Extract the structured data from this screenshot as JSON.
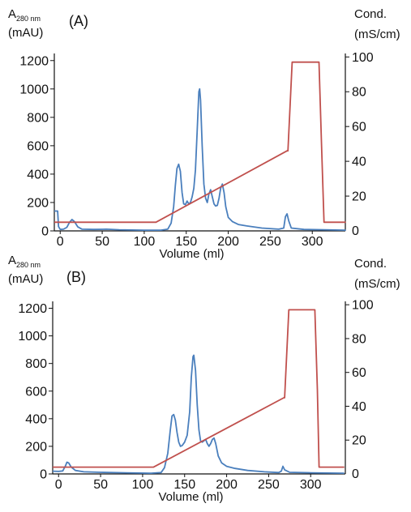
{
  "chart_data": [
    {
      "panel": "(A)",
      "type": "line",
      "xlabel": "Volume (ml)",
      "ylabel_main": "A",
      "ylabel_sub": "280 nm",
      "ylabel_unit": "(mAU)",
      "y2label": "Cond.",
      "y2label_unit": "(mS/cm)",
      "xlim": [
        -7,
        340
      ],
      "ylim": [
        0,
        1300
      ],
      "y2lim": [
        0,
        102
      ],
      "xticks": [
        0,
        50,
        100,
        150,
        200,
        250,
        300
      ],
      "yticks": [
        0,
        200,
        400,
        600,
        800,
        1000,
        1200
      ],
      "y2ticks": [
        20,
        40,
        60,
        80,
        100
      ],
      "series": [
        {
          "axis": "left",
          "color": "#4a7fbd",
          "points": [
            [
              -7,
              140
            ],
            [
              -3,
              140
            ],
            [
              -2,
              30
            ],
            [
              0,
              10
            ],
            [
              4,
              12
            ],
            [
              8,
              25
            ],
            [
              11,
              60
            ],
            [
              14,
              80
            ],
            [
              17,
              65
            ],
            [
              21,
              28
            ],
            [
              26,
              12
            ],
            [
              40,
              10
            ],
            [
              55,
              12
            ],
            [
              70,
              8
            ],
            [
              100,
              5
            ],
            [
              120,
              5
            ],
            [
              128,
              12
            ],
            [
              132,
              55
            ],
            [
              135,
              170
            ],
            [
              137,
              320
            ],
            [
              139,
              440
            ],
            [
              141,
              470
            ],
            [
              143,
              420
            ],
            [
              145,
              270
            ],
            [
              147,
              190
            ],
            [
              149,
              185
            ],
            [
              151,
              210
            ],
            [
              153,
              190
            ],
            [
              155,
              200
            ],
            [
              157,
              240
            ],
            [
              159,
              300
            ],
            [
              161,
              430
            ],
            [
              163,
              700
            ],
            [
              165,
              980
            ],
            [
              166,
              1000
            ],
            [
              167,
              920
            ],
            [
              169,
              600
            ],
            [
              171,
              330
            ],
            [
              173,
              230
            ],
            [
              175,
              200
            ],
            [
              177,
              260
            ],
            [
              179,
              290
            ],
            [
              181,
              240
            ],
            [
              183,
              190
            ],
            [
              185,
              175
            ],
            [
              187,
              180
            ],
            [
              189,
              230
            ],
            [
              191,
              300
            ],
            [
              193,
              330
            ],
            [
              195,
              270
            ],
            [
              197,
              170
            ],
            [
              200,
              95
            ],
            [
              205,
              65
            ],
            [
              212,
              45
            ],
            [
              222,
              35
            ],
            [
              240,
              20
            ],
            [
              260,
              12
            ],
            [
              266,
              20
            ],
            [
              268,
              100
            ],
            [
              270,
              120
            ],
            [
              272,
              70
            ],
            [
              275,
              20
            ],
            [
              290,
              10
            ],
            [
              340,
              5
            ]
          ]
        },
        {
          "axis": "right",
          "color": "#c0504d",
          "points": [
            [
              -7,
              5
            ],
            [
              114,
              5
            ],
            [
              270,
              46
            ],
            [
              271,
              46
            ],
            [
              276,
              97
            ],
            [
              308,
              97
            ],
            [
              311,
              50
            ],
            [
              314,
              5
            ],
            [
              340,
              5
            ]
          ]
        }
      ]
    },
    {
      "panel": "(B)",
      "type": "line",
      "xlabel": "Volume (ml)",
      "ylabel_main": "A",
      "ylabel_sub": "280 nm",
      "ylabel_unit": "(mAU)",
      "y2label": "Cond.",
      "y2label_unit": "(mS/cm)",
      "xlim": [
        -7,
        340
      ],
      "ylim": [
        0,
        1300
      ],
      "y2lim": [
        0,
        102
      ],
      "xticks": [
        0,
        50,
        100,
        150,
        200,
        250,
        300
      ],
      "yticks": [
        0,
        200,
        400,
        600,
        800,
        1000,
        1200
      ],
      "y2ticks": [
        20,
        40,
        60,
        80,
        100
      ],
      "series": [
        {
          "axis": "left",
          "color": "#4a7fbd",
          "points": [
            [
              -7,
              20
            ],
            [
              0,
              18
            ],
            [
              5,
              22
            ],
            [
              8,
              55
            ],
            [
              10,
              85
            ],
            [
              12,
              80
            ],
            [
              15,
              50
            ],
            [
              20,
              25
            ],
            [
              30,
              15
            ],
            [
              50,
              12
            ],
            [
              80,
              8
            ],
            [
              110,
              5
            ],
            [
              122,
              10
            ],
            [
              126,
              45
            ],
            [
              130,
              150
            ],
            [
              133,
              320
            ],
            [
              135,
              420
            ],
            [
              137,
              430
            ],
            [
              139,
              390
            ],
            [
              141,
              300
            ],
            [
              143,
              230
            ],
            [
              145,
              200
            ],
            [
              147,
              205
            ],
            [
              150,
              230
            ],
            [
              153,
              280
            ],
            [
              156,
              450
            ],
            [
              158,
              700
            ],
            [
              160,
              850
            ],
            [
              161,
              860
            ],
            [
              163,
              750
            ],
            [
              165,
              500
            ],
            [
              167,
              320
            ],
            [
              169,
              240
            ],
            [
              171,
              230
            ],
            [
              173,
              240
            ],
            [
              175,
              250
            ],
            [
              177,
              220
            ],
            [
              179,
              200
            ],
            [
              181,
              220
            ],
            [
              183,
              250
            ],
            [
              185,
              260
            ],
            [
              187,
              220
            ],
            [
              190,
              130
            ],
            [
              194,
              80
            ],
            [
              200,
              55
            ],
            [
              210,
              40
            ],
            [
              225,
              25
            ],
            [
              245,
              15
            ],
            [
              262,
              10
            ],
            [
              265,
              20
            ],
            [
              267,
              55
            ],
            [
              269,
              30
            ],
            [
              275,
              12
            ],
            [
              300,
              8
            ],
            [
              340,
              5
            ]
          ]
        },
        {
          "axis": "right",
          "color": "#c0504d",
          "points": [
            [
              -7,
              4
            ],
            [
              113,
              4
            ],
            [
              268,
              45
            ],
            [
              269,
              45
            ],
            [
              274,
              97
            ],
            [
              305,
              97
            ],
            [
              308,
              50
            ],
            [
              310,
              4
            ],
            [
              340,
              4
            ]
          ]
        }
      ]
    }
  ]
}
